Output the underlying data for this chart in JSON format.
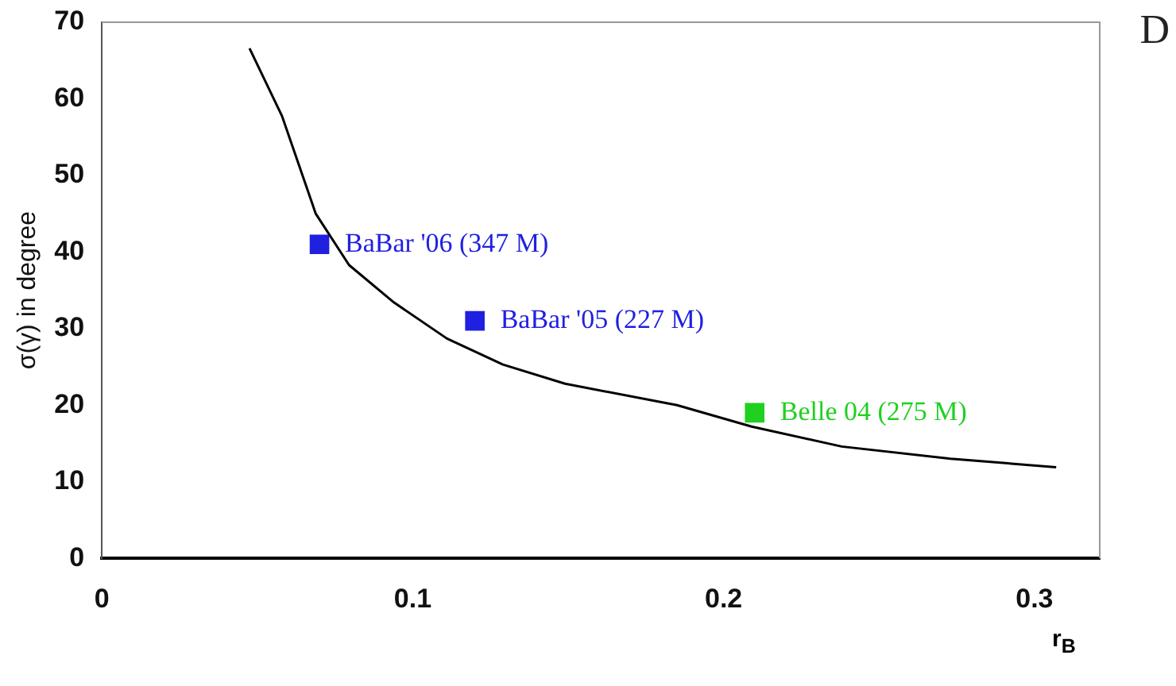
{
  "chart_data": {
    "type": "scatter",
    "xlabel": "r$_{B}$",
    "ylabel": "σ(γ) in degree",
    "xlim": [
      0,
      0.321
    ],
    "xticks": [
      0,
      0.1,
      0.2,
      0.3
    ],
    "ylim": [
      0,
      70
    ],
    "yticks": [
      0,
      10,
      20,
      30,
      40,
      50,
      60,
      70
    ],
    "grid": false,
    "legend": false,
    "marker": "square",
    "annotations": [
      "D"
    ],
    "series": [
      {
        "type": "line",
        "color": "#000000",
        "marker": "none",
        "x": [
          0.0475,
          0.058,
          0.0688,
          0.0795,
          0.094,
          0.111,
          0.129,
          0.149,
          0.185,
          0.209,
          0.238,
          0.273,
          0.307
        ],
        "values": [
          66.6,
          57.7,
          45,
          38.3,
          33.4,
          28.7,
          25.3,
          22.8,
          20,
          17.2,
          14.6,
          13,
          11.9
        ]
      },
      {
        "name": "BaBar '06 (347 M)",
        "color": "#2020e0",
        "x": [
          0.07
        ],
        "values": [
          41
        ]
      },
      {
        "name": "BaBar '05 (227 M)",
        "color": "#2020e0",
        "x": [
          0.12
        ],
        "values": [
          31
        ]
      },
      {
        "name": "Belle 04 (275 M)",
        "color": "#20d020",
        "x": [
          0.21
        ],
        "values": [
          19
        ]
      }
    ]
  }
}
